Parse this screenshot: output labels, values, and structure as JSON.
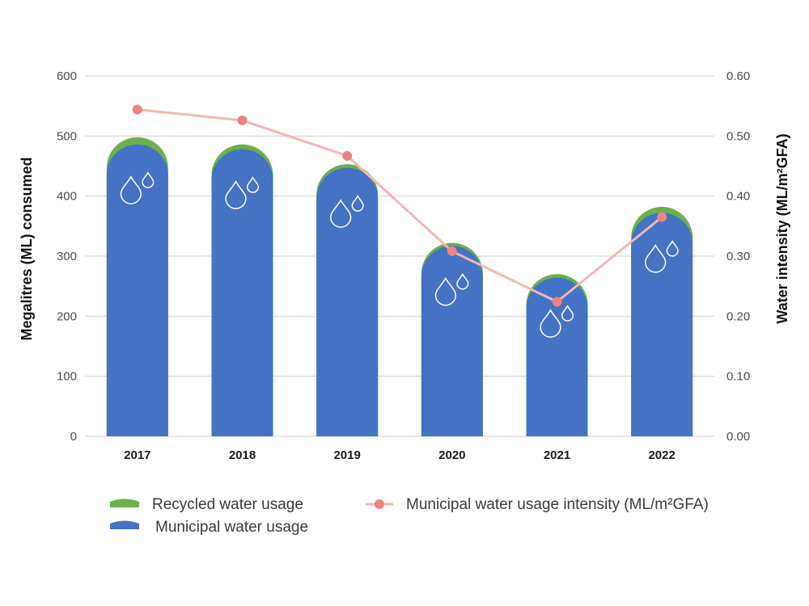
{
  "colors": {
    "recycled": "#6ab04c",
    "municipal": "#4472c4",
    "intensity_line": "#f4b6b6",
    "intensity_marker": "#ef8282",
    "grid": "#cfcfcf"
  },
  "chart_data": {
    "type": "bar",
    "categories": [
      "2017",
      "2018",
      "2019",
      "2020",
      "2021",
      "2022"
    ],
    "series": [
      {
        "name": "Municipal water usage",
        "values": [
          486,
          478,
          447,
          317,
          264,
          372
        ]
      },
      {
        "name": "Recycled water usage",
        "values": [
          12,
          8,
          6,
          5,
          6,
          10
        ]
      },
      {
        "name": "Municipal water usage intensity (ML/m²GFA)",
        "values": [
          0.544,
          0.526,
          0.467,
          0.308,
          0.224,
          0.365
        ],
        "axis": "right",
        "kind": "line"
      }
    ],
    "ylabel": "Megalitres (ML) consumed",
    "ylabel_right": "Water intensity (ML/m²GFA)",
    "ylim": [
      0,
      600
    ],
    "ylim_right": [
      0,
      0.6
    ],
    "yticks": [
      "0",
      "100",
      "200",
      "300",
      "400",
      "500",
      "600"
    ],
    "yticks_right": [
      "0.00",
      "0.10",
      "0.20",
      "0.30",
      "0.40",
      "0.50",
      "0.60"
    ],
    "grid": true,
    "stacked": true,
    "legend_position": "bottom",
    "bar_icon": "water-drops-icon"
  }
}
